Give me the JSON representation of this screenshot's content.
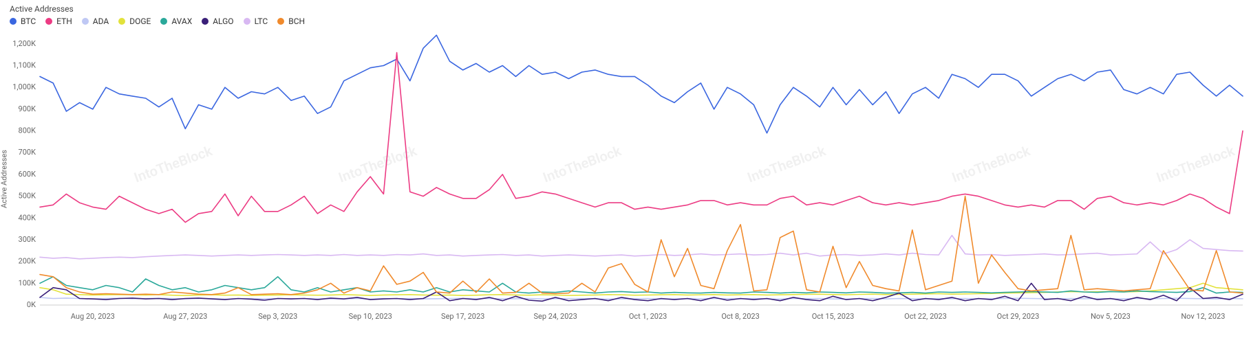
{
  "chart": {
    "type": "line",
    "title": "Active Addresses",
    "yaxis_label": "Active Addresses",
    "background_color": "#ffffff",
    "axis_line_color": "#cccccc",
    "tick_font_color": "#666666",
    "title_font_color": "#444444",
    "legend_font_color": "#333333",
    "title_fontsize": 12,
    "tick_fontsize": 11,
    "line_width": 1.6,
    "watermark_text": "IntoTheBlock",
    "watermark_color": "#f0f0f0",
    "ylim": [
      0,
      1250000
    ],
    "yticks": [
      {
        "v": 0,
        "label": "0K"
      },
      {
        "v": 100000,
        "label": "100K"
      },
      {
        "v": 200000,
        "label": "200K"
      },
      {
        "v": 300000,
        "label": "300K"
      },
      {
        "v": 400000,
        "label": "400K"
      },
      {
        "v": 500000,
        "label": "500K"
      },
      {
        "v": 600000,
        "label": "600K"
      },
      {
        "v": 700000,
        "label": "700K"
      },
      {
        "v": 800000,
        "label": "800K"
      },
      {
        "v": 900000,
        "label": "900K"
      },
      {
        "v": 1000000,
        "label": "1,000K"
      },
      {
        "v": 1100000,
        "label": "1,100K"
      },
      {
        "v": 1200000,
        "label": "1,200K"
      }
    ],
    "xticks": [
      {
        "i": 4,
        "label": "Aug 20, 2023"
      },
      {
        "i": 11,
        "label": "Aug 27, 2023"
      },
      {
        "i": 18,
        "label": "Sep 3, 2023"
      },
      {
        "i": 25,
        "label": "Sep 10, 2023"
      },
      {
        "i": 32,
        "label": "Sep 17, 2023"
      },
      {
        "i": 39,
        "label": "Sep 24, 2023"
      },
      {
        "i": 46,
        "label": "Oct 1, 2023"
      },
      {
        "i": 53,
        "label": "Oct 8, 2023"
      },
      {
        "i": 60,
        "label": "Oct 15, 2023"
      },
      {
        "i": 67,
        "label": "Oct 22, 2023"
      },
      {
        "i": 74,
        "label": "Oct 29, 2023"
      },
      {
        "i": 81,
        "label": "Nov 5, 2023"
      },
      {
        "i": 88,
        "label": "Nov 12, 2023"
      }
    ],
    "n_points": 92,
    "series": [
      {
        "name": "BTC",
        "color": "#3a66e0",
        "data": [
          1050000,
          1020000,
          890000,
          930000,
          900000,
          1000000,
          970000,
          960000,
          950000,
          910000,
          950000,
          810000,
          920000,
          900000,
          1000000,
          950000,
          980000,
          970000,
          1000000,
          940000,
          960000,
          880000,
          910000,
          1030000,
          1060000,
          1090000,
          1100000,
          1130000,
          1030000,
          1180000,
          1240000,
          1120000,
          1080000,
          1110000,
          1070000,
          1100000,
          1050000,
          1100000,
          1060000,
          1070000,
          1040000,
          1070000,
          1080000,
          1060000,
          1050000,
          1050000,
          1010000,
          960000,
          930000,
          980000,
          1020000,
          900000,
          1000000,
          970000,
          920000,
          790000,
          920000,
          1000000,
          960000,
          910000,
          1000000,
          920000,
          990000,
          920000,
          980000,
          880000,
          970000,
          1000000,
          950000,
          1060000,
          1040000,
          1000000,
          1060000,
          1060000,
          1030000,
          960000,
          1000000,
          1040000,
          1060000,
          1030000,
          1070000,
          1080000,
          990000,
          970000,
          1000000,
          970000,
          1060000,
          1070000,
          1010000,
          960000,
          1010000,
          960000
        ]
      },
      {
        "name": "ETH",
        "color": "#ec3b83",
        "data": [
          450000,
          460000,
          510000,
          470000,
          450000,
          440000,
          500000,
          470000,
          440000,
          420000,
          440000,
          380000,
          420000,
          430000,
          510000,
          410000,
          500000,
          430000,
          430000,
          460000,
          500000,
          420000,
          460000,
          430000,
          520000,
          590000,
          510000,
          1160000,
          520000,
          500000,
          540000,
          510000,
          490000,
          490000,
          530000,
          600000,
          490000,
          500000,
          520000,
          510000,
          490000,
          470000,
          450000,
          470000,
          470000,
          440000,
          450000,
          440000,
          450000,
          460000,
          480000,
          480000,
          460000,
          470000,
          460000,
          460000,
          490000,
          500000,
          460000,
          470000,
          460000,
          480000,
          500000,
          470000,
          460000,
          470000,
          460000,
          470000,
          480000,
          500000,
          510000,
          500000,
          480000,
          460000,
          450000,
          460000,
          450000,
          480000,
          480000,
          440000,
          490000,
          500000,
          470000,
          460000,
          470000,
          460000,
          480000,
          510000,
          490000,
          450000,
          420000,
          800000
        ]
      },
      {
        "name": "ADA",
        "color": "#bfc8f4",
        "data": [
          35000,
          30000,
          32000,
          30000,
          28000,
          30000,
          31000,
          29000,
          30000,
          31000,
          30000,
          28000,
          30000,
          30000,
          27000,
          29000,
          30000,
          28000,
          30000,
          29000,
          30000,
          28000,
          29000,
          28000,
          30000,
          27000,
          30000,
          29000,
          30000,
          28000,
          29000,
          30000,
          31000,
          29000,
          30000,
          28000,
          29000,
          30000,
          28000,
          29000,
          30000,
          30000,
          28000,
          27000,
          28000,
          29000,
          30000,
          27000,
          28000,
          29000,
          28000,
          30000,
          29000,
          28000,
          30000,
          28000,
          27000,
          30000,
          29000,
          30000,
          28000,
          27000,
          29000,
          30000,
          28000,
          30000,
          29000,
          28000,
          30000,
          29000,
          30000,
          28000,
          29000,
          30000,
          31000,
          30000,
          29000,
          28000,
          30000,
          29000,
          30000,
          28000,
          29000,
          30000,
          29000,
          30000,
          31000,
          30000,
          29000,
          28000,
          30000,
          29000
        ]
      },
      {
        "name": "DOGE",
        "color": "#e2e23b",
        "data": [
          80000,
          70000,
          50000,
          48000,
          46000,
          47000,
          48000,
          47000,
          46000,
          48000,
          45000,
          44000,
          46000,
          47000,
          45000,
          46000,
          44000,
          45000,
          46000,
          47000,
          46000,
          45000,
          46000,
          48000,
          46000,
          44000,
          46000,
          47000,
          48000,
          46000,
          45000,
          46000,
          44000,
          45000,
          47000,
          48000,
          46000,
          45000,
          47000,
          46000,
          44000,
          45000,
          46000,
          48000,
          47000,
          45000,
          46000,
          47000,
          48000,
          46000,
          47000,
          48000,
          46000,
          47000,
          48000,
          46000,
          47000,
          48000,
          49000,
          50000,
          48000,
          47000,
          49000,
          50000,
          48000,
          49000,
          50000,
          51000,
          52000,
          50000,
          51000,
          52000,
          53000,
          55000,
          56000,
          57000,
          58000,
          60000,
          62000,
          60000,
          61000,
          62000,
          60000,
          62000,
          65000,
          70000,
          75000,
          80000,
          100000,
          80000,
          75000,
          70000
        ]
      },
      {
        "name": "AVAX",
        "color": "#2aa89a",
        "data": [
          100000,
          130000,
          90000,
          80000,
          70000,
          90000,
          80000,
          60000,
          120000,
          90000,
          70000,
          80000,
          60000,
          70000,
          90000,
          80000,
          70000,
          80000,
          130000,
          70000,
          60000,
          80000,
          60000,
          70000,
          80000,
          60000,
          65000,
          60000,
          70000,
          60000,
          80000,
          60000,
          70000,
          65000,
          60000,
          100000,
          60000,
          55000,
          60000,
          58000,
          65000,
          60000,
          55000,
          60000,
          62000,
          58000,
          60000,
          55000,
          58000,
          56000,
          55000,
          58000,
          56000,
          55000,
          60000,
          58000,
          55000,
          58000,
          56000,
          60000,
          58000,
          56000,
          60000,
          58000,
          55000,
          56000,
          58000,
          55000,
          60000,
          58000,
          60000,
          58000,
          56000,
          58000,
          60000,
          62000,
          60000,
          58000,
          65000,
          60000,
          58000,
          62000,
          60000,
          65000,
          62000,
          60000,
          58000,
          62000,
          80000,
          55000,
          60000,
          58000
        ]
      },
      {
        "name": "ALGO",
        "color": "#3a1f78",
        "data": [
          35000,
          80000,
          70000,
          30000,
          28000,
          25000,
          30000,
          32000,
          28000,
          30000,
          25000,
          30000,
          32000,
          28000,
          25000,
          30000,
          27000,
          22000,
          30000,
          28000,
          30000,
          25000,
          32000,
          28000,
          35000,
          25000,
          28000,
          30000,
          25000,
          30000,
          60000,
          20000,
          30000,
          25000,
          35000,
          20000,
          40000,
          22000,
          18000,
          35000,
          20000,
          25000,
          30000,
          20000,
          35000,
          25000,
          20000,
          30000,
          25000,
          30000,
          20000,
          35000,
          22000,
          30000,
          25000,
          30000,
          20000,
          35000,
          25000,
          20000,
          40000,
          25000,
          30000,
          20000,
          35000,
          55000,
          20000,
          30000,
          25000,
          35000,
          20000,
          30000,
          25000,
          40000,
          20000,
          100000,
          25000,
          30000,
          20000,
          40000,
          25000,
          30000,
          20000,
          35000,
          25000,
          45000,
          20000,
          80000,
          30000,
          35000,
          25000,
          50000
        ]
      },
      {
        "name": "LTC",
        "color": "#d8b8f2",
        "data": [
          220000,
          215000,
          218000,
          212000,
          215000,
          218000,
          220000,
          218000,
          222000,
          225000,
          228000,
          230000,
          228000,
          225000,
          228000,
          230000,
          228000,
          230000,
          232000,
          230000,
          228000,
          230000,
          228000,
          232000,
          228000,
          230000,
          228000,
          232000,
          230000,
          235000,
          228000,
          230000,
          225000,
          228000,
          230000,
          232000,
          228000,
          230000,
          225000,
          228000,
          230000,
          228000,
          225000,
          228000,
          230000,
          225000,
          228000,
          232000,
          228000,
          230000,
          235000,
          230000,
          232000,
          235000,
          230000,
          232000,
          238000,
          230000,
          238000,
          225000,
          230000,
          232000,
          228000,
          230000,
          235000,
          230000,
          238000,
          232000,
          230000,
          320000,
          235000,
          230000,
          232000,
          228000,
          230000,
          232000,
          235000,
          230000,
          232000,
          235000,
          238000,
          230000,
          232000,
          235000,
          290000,
          235000,
          255000,
          300000,
          260000,
          255000,
          250000,
          248000
        ]
      },
      {
        "name": "BCH",
        "color": "#f08a2c",
        "data": [
          140000,
          130000,
          80000,
          60000,
          50000,
          52000,
          50000,
          48000,
          50000,
          48000,
          60000,
          55000,
          50000,
          48000,
          55000,
          80000,
          48000,
          50000,
          52000,
          48000,
          55000,
          70000,
          100000,
          55000,
          80000,
          65000,
          180000,
          95000,
          110000,
          150000,
          60000,
          55000,
          110000,
          58000,
          120000,
          55000,
          58000,
          100000,
          55000,
          52000,
          55000,
          100000,
          60000,
          170000,
          190000,
          95000,
          60000,
          300000,
          130000,
          260000,
          90000,
          75000,
          250000,
          370000,
          65000,
          70000,
          310000,
          340000,
          70000,
          60000,
          270000,
          80000,
          200000,
          90000,
          75000,
          65000,
          345000,
          70000,
          90000,
          110000,
          500000,
          100000,
          230000,
          150000,
          75000,
          65000,
          70000,
          75000,
          320000,
          70000,
          75000,
          70000,
          65000,
          70000,
          75000,
          250000,
          160000,
          70000,
          65000,
          250000,
          60000,
          55000
        ]
      }
    ]
  }
}
